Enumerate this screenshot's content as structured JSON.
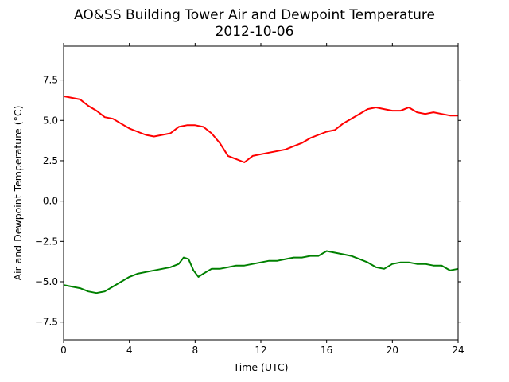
{
  "chart_data": {
    "type": "line",
    "title": "AO&SS Building Tower Air and Dewpoint Temperature",
    "subtitle": "2012-10-06",
    "xlabel": "Time (UTC)",
    "ylabel": "Air and Dewpoint Temperature (°C)",
    "xlim": [
      0,
      24
    ],
    "ylim": [
      -8.6,
      9.6
    ],
    "x_ticks": [
      0,
      4,
      8,
      12,
      16,
      20,
      24
    ],
    "x_tick_labels": [
      "0",
      "4",
      "8",
      "12",
      "16",
      "20",
      "24"
    ],
    "y_ticks": [
      -7.5,
      -5.0,
      -2.5,
      0.0,
      2.5,
      5.0,
      7.5
    ],
    "y_tick_labels": [
      "−7.5",
      "−5.0",
      "−2.5",
      "0.0",
      "2.5",
      "5.0",
      "7.5"
    ],
    "grid": false,
    "legend": "none",
    "series": [
      {
        "color": "#ff0000",
        "x": [
          0,
          0.5,
          1,
          1.5,
          2,
          2.5,
          3,
          3.5,
          4,
          4.5,
          5,
          5.5,
          6,
          6.5,
          7,
          7.5,
          8,
          8.5,
          9,
          9.5,
          10,
          10.5,
          11,
          11.5,
          12,
          12.5,
          13,
          13.5,
          14,
          14.5,
          15,
          15.5,
          16,
          16.5,
          17,
          17.5,
          18,
          18.5,
          19,
          19.5,
          20,
          20.5,
          21,
          21.5,
          22,
          22.5,
          23,
          23.5,
          24
        ],
        "values": [
          6.5,
          6.4,
          6.3,
          5.9,
          5.6,
          5.2,
          5.1,
          4.8,
          4.5,
          4.3,
          4.1,
          4.0,
          4.1,
          4.2,
          4.6,
          4.7,
          4.7,
          4.6,
          4.2,
          3.6,
          2.8,
          2.6,
          2.4,
          2.8,
          2.9,
          3.0,
          3.1,
          3.2,
          3.4,
          3.6,
          3.9,
          4.1,
          4.3,
          4.4,
          4.8,
          5.1,
          5.4,
          5.7,
          5.8,
          5.7,
          5.6,
          5.6,
          5.8,
          5.5,
          5.4,
          5.5,
          5.4,
          5.3,
          5.3
        ]
      },
      {
        "color": "#008000",
        "x": [
          0,
          0.5,
          1,
          1.5,
          2,
          2.5,
          3,
          3.5,
          4,
          4.5,
          5,
          5.5,
          6,
          6.5,
          7,
          7.3,
          7.6,
          7.9,
          8.2,
          8.5,
          9,
          9.5,
          10,
          10.5,
          11,
          11.5,
          12,
          12.5,
          13,
          13.5,
          14,
          14.5,
          15,
          15.5,
          16,
          16.5,
          17,
          17.5,
          18,
          18.5,
          19,
          19.5,
          20,
          20.5,
          21,
          21.5,
          22,
          22.5,
          23,
          23.5,
          24
        ],
        "values": [
          -5.2,
          -5.3,
          -5.4,
          -5.6,
          -5.7,
          -5.6,
          -5.3,
          -5.0,
          -4.7,
          -4.5,
          -4.4,
          -4.3,
          -4.2,
          -4.1,
          -3.9,
          -3.5,
          -3.6,
          -4.3,
          -4.7,
          -4.5,
          -4.2,
          -4.2,
          -4.1,
          -4.0,
          -4.0,
          -3.9,
          -3.8,
          -3.7,
          -3.7,
          -3.6,
          -3.5,
          -3.5,
          -3.4,
          -3.4,
          -3.1,
          -3.2,
          -3.3,
          -3.4,
          -3.6,
          -3.8,
          -4.1,
          -4.2,
          -3.9,
          -3.8,
          -3.8,
          -3.9,
          -3.9,
          -4.0,
          -4.0,
          -4.3,
          -4.2
        ]
      }
    ]
  }
}
